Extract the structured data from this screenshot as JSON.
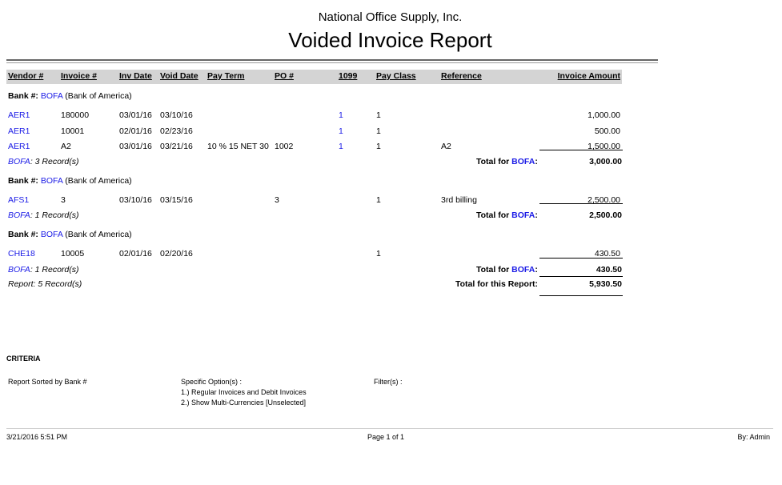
{
  "report": {
    "company": "National Office Supply, Inc.",
    "title": "Voided Invoice Report"
  },
  "columns": [
    "Vendor #",
    "Invoice #",
    "Inv Date",
    "Void Date",
    "Pay Term",
    "PO #",
    "1099",
    "Pay Class",
    "Reference",
    "Invoice Amount"
  ],
  "groups": [
    {
      "bank_label": "Bank #:",
      "bank_code": "BOFA",
      "bank_name": "(Bank of America)",
      "rows": [
        {
          "vendor": "AER1",
          "invoice": "180000",
          "inv_date": "03/01/16",
          "void_date": "03/10/16",
          "pay_term": "",
          "po": "",
          "t1099": "1",
          "pay_class": "1",
          "reference": "",
          "amount": "1,000.00"
        },
        {
          "vendor": "AER1",
          "invoice": "10001",
          "inv_date": "02/01/16",
          "void_date": "02/23/16",
          "pay_term": "",
          "po": "",
          "t1099": "1",
          "pay_class": "1",
          "reference": "",
          "amount": "500.00"
        },
        {
          "vendor": "AER1",
          "invoice": "A2",
          "inv_date": "03/01/16",
          "void_date": "03/21/16",
          "pay_term": "10 % 15 NET 30",
          "po": "1002",
          "t1099": "1",
          "pay_class": "1",
          "reference": "A2",
          "amount": "1,500.00"
        }
      ],
      "summary_code": "BOFA",
      "summary_count": ": 3 Record(s)",
      "total_label": "Total for ",
      "total_code": "BOFA",
      "total_colon": ":",
      "total": "3,000.00"
    },
    {
      "bank_label": "Bank #:",
      "bank_code": "BOFA",
      "bank_name": "(Bank of America)",
      "rows": [
        {
          "vendor": "AFS1",
          "invoice": "3",
          "inv_date": "03/10/16",
          "void_date": "03/15/16",
          "pay_term": "",
          "po": "3",
          "t1099": "",
          "pay_class": "1",
          "reference": "3rd billing",
          "amount": "2,500.00"
        }
      ],
      "summary_code": "BOFA",
      "summary_count": ": 1 Record(s)",
      "total_label": "Total for ",
      "total_code": "BOFA",
      "total_colon": ":",
      "total": "2,500.00"
    },
    {
      "bank_label": "Bank #:",
      "bank_code": "BOFA",
      "bank_name": "(Bank of America)",
      "rows": [
        {
          "vendor": "CHE18",
          "invoice": "10005",
          "inv_date": "02/01/16",
          "void_date": "02/20/16",
          "pay_term": "",
          "po": "",
          "t1099": "",
          "pay_class": "1",
          "reference": "",
          "amount": "430.50"
        }
      ],
      "summary_code": "BOFA",
      "summary_count": ": 1 Record(s)",
      "total_label": "Total for ",
      "total_code": "BOFA",
      "total_colon": ":",
      "total": "430.50"
    }
  ],
  "report_total": {
    "count": "Report: 5 Record(s)",
    "label": "Total for this Report:",
    "amount": "5,930.50"
  },
  "criteria": {
    "heading": "CRITERIA",
    "sorted": "Report Sorted by Bank #",
    "options_label": "Specific Option(s) :",
    "options": [
      "1.) Regular Invoices and Debit Invoices",
      "2.) Show Multi-Currencies [Unselected]"
    ],
    "filters_label": "Filter(s) :"
  },
  "footer": {
    "datetime": "3/21/2016 5:51 PM",
    "page": "Page 1 of 1",
    "user": "By: Admin"
  },
  "colors": {
    "link": "#1a1ae6",
    "header_band": "#d4d4d4"
  }
}
